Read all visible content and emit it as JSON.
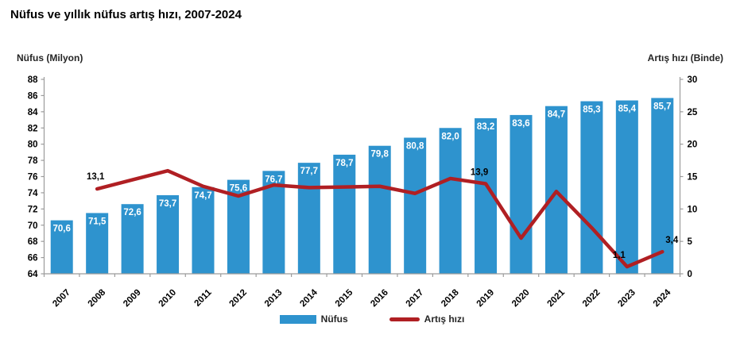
{
  "title": "Nüfus ve yıllık nüfus artış hızı, 2007-2024",
  "left_axis": {
    "label": "Nüfus (Milyon)",
    "min": 64,
    "max": 88,
    "step": 2
  },
  "right_axis": {
    "label": "Artış hızı (Binde)",
    "min": 0,
    "max": 30,
    "step": 5
  },
  "legend": [
    {
      "label": "Nüfus",
      "type": "bar",
      "color": "#2E93CE"
    },
    {
      "label": "Artış hızı",
      "type": "line",
      "color": "#B01F23"
    }
  ],
  "colors": {
    "bar": "#2E93CE",
    "line": "#B01F23",
    "axis": "#9C9C9C",
    "bar_label": "#FFFFFF",
    "text": "#000000"
  },
  "chart_data": {
    "type": "combo",
    "categories": [
      "2007",
      "2008",
      "2009",
      "2010",
      "2011",
      "2012",
      "2013",
      "2014",
      "2015",
      "2016",
      "2017",
      "2018",
      "2019",
      "2020",
      "2021",
      "2022",
      "2023",
      "2024"
    ],
    "series": [
      {
        "name": "Nüfus",
        "type": "bar",
        "axis": "left",
        "values": [
          70.6,
          71.5,
          72.6,
          73.7,
          74.7,
          75.6,
          76.7,
          77.7,
          78.7,
          79.8,
          80.8,
          82.0,
          83.2,
          83.6,
          84.7,
          85.3,
          85.4,
          85.7
        ]
      },
      {
        "name": "Artış hızı",
        "type": "line",
        "axis": "right",
        "values": [
          null,
          13.1,
          14.5,
          15.9,
          13.5,
          12.0,
          13.7,
          13.3,
          13.4,
          13.5,
          12.4,
          14.7,
          13.9,
          5.5,
          12.7,
          7.1,
          1.1,
          3.4
        ]
      }
    ],
    "annotations": [
      {
        "category": "2008",
        "text": "13,1"
      },
      {
        "category": "2019",
        "text": "13,9"
      },
      {
        "category": "2023",
        "text": "1,1"
      },
      {
        "category": "2024",
        "text": "3,4"
      }
    ],
    "bar_labels_visible": true,
    "grid": false,
    "legend_position": "bottom",
    "title": "Nüfus ve yıllık nüfus artış hızı, 2007-2024",
    "xlabel": "",
    "ylabel_left": "Nüfus (Milyon)",
    "ylabel_right": "Artış hızı (Binde)"
  }
}
